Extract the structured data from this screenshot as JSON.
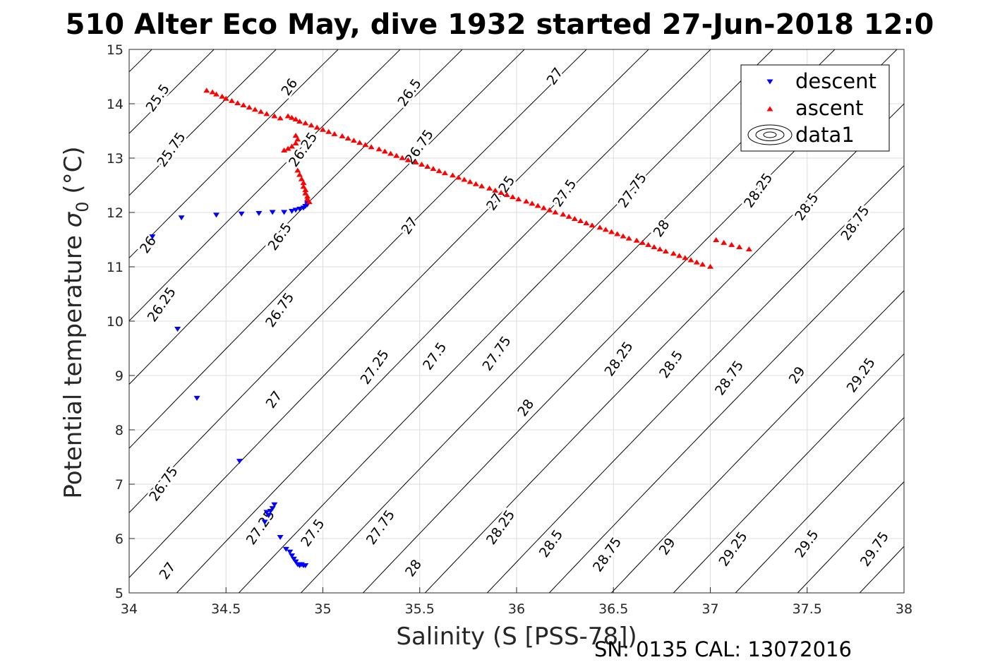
{
  "chart_data": {
    "type": "scatter",
    "title": "510 Alter Eco May, dive 1932 started 27-Jun-2018 12:0",
    "xlabel": "Salinity (S [PSS-78])",
    "ylabel_main": "Potential temperature ",
    "ylabel_symbol": "σ",
    "ylabel_sub": "0",
    "ylabel_unit": " (°C)",
    "footer": "SN: 0135  CAL: 13072016",
    "xlim": [
      34,
      38
    ],
    "ylim": [
      5,
      15
    ],
    "xticks": [
      "34",
      "34.5",
      "35",
      "35.5",
      "36",
      "36.5",
      "37",
      "37.5",
      "38"
    ],
    "yticks": [
      "5",
      "6",
      "7",
      "8",
      "9",
      "10",
      "11",
      "12",
      "13",
      "14",
      "15"
    ],
    "grid": true,
    "legend": {
      "position": "top-right",
      "entries": [
        {
          "label": "descent",
          "marker": "down-triangle",
          "color": "#0000ff"
        },
        {
          "label": "ascent",
          "marker": "up-triangle",
          "color": "#ff0000"
        },
        {
          "label": "data1",
          "marker": "contour",
          "color": "#000000"
        }
      ]
    },
    "density_contours": {
      "levels": [
        25.5,
        25.75,
        26,
        26.25,
        26.5,
        26.75,
        27,
        27.25,
        27.5,
        27.75,
        28,
        28.25,
        28.5,
        28.75,
        29,
        29.25,
        29.5,
        29.75
      ],
      "reference": {
        "S": 34.4,
        "T": 14.2,
        "sigma": 25.66
      },
      "dsigma_dS": 0.78,
      "dsigma_dT": -0.215,
      "line_color": "#000000",
      "labels": [
        {
          "text": "25.5",
          "S": 34.15,
          "T": 14.1
        },
        {
          "text": "26",
          "S": 34.83,
          "T": 14.3
        },
        {
          "text": "26.5",
          "S": 35.45,
          "T": 14.2
        },
        {
          "text": "27",
          "S": 36.2,
          "T": 14.5
        },
        {
          "text": "25.75",
          "S": 34.22,
          "T": 13.15
        },
        {
          "text": "26.25",
          "S": 34.9,
          "T": 13.15
        },
        {
          "text": "26.75",
          "S": 35.5,
          "T": 13.2
        },
        {
          "text": "26",
          "S": 34.1,
          "T": 11.4
        },
        {
          "text": "26.5",
          "S": 34.78,
          "T": 11.55
        },
        {
          "text": "27",
          "S": 35.45,
          "T": 11.75
        },
        {
          "text": "27.25",
          "S": 35.92,
          "T": 12.35
        },
        {
          "text": "27.5",
          "S": 36.25,
          "T": 12.35
        },
        {
          "text": "27.75",
          "S": 36.6,
          "T": 12.4
        },
        {
          "text": "28",
          "S": 36.75,
          "T": 11.7
        },
        {
          "text": "28.25",
          "S": 37.25,
          "T": 12.4
        },
        {
          "text": "28.5",
          "S": 37.5,
          "T": 12.1
        },
        {
          "text": "28.75",
          "S": 37.75,
          "T": 11.8
        },
        {
          "text": "26.25",
          "S": 34.17,
          "T": 10.3
        },
        {
          "text": "26.75",
          "S": 34.78,
          "T": 10.2
        },
        {
          "text": "27.25",
          "S": 35.27,
          "T": 9.15
        },
        {
          "text": "27.5",
          "S": 35.58,
          "T": 9.35
        },
        {
          "text": "27.75",
          "S": 35.9,
          "T": 9.4
        },
        {
          "text": "28.25",
          "S": 36.53,
          "T": 9.3
        },
        {
          "text": "28.5",
          "S": 36.8,
          "T": 9.2
        },
        {
          "text": "28.75",
          "S": 37.1,
          "T": 8.95
        },
        {
          "text": "29",
          "S": 37.45,
          "T": 9.0
        },
        {
          "text": "29.25",
          "S": 37.78,
          "T": 9.0
        },
        {
          "text": "27",
          "S": 34.75,
          "T": 8.55
        },
        {
          "text": "28",
          "S": 36.05,
          "T": 8.4
        },
        {
          "text": "26.75",
          "S": 34.18,
          "T": 7.0
        },
        {
          "text": "27.25",
          "S": 34.68,
          "T": 6.2
        },
        {
          "text": "27.5",
          "S": 34.95,
          "T": 6.1
        },
        {
          "text": "27.75",
          "S": 35.3,
          "T": 6.2
        },
        {
          "text": "28.25",
          "S": 35.92,
          "T": 6.2
        },
        {
          "text": "28.5",
          "S": 36.18,
          "T": 5.9
        },
        {
          "text": "28.75",
          "S": 36.47,
          "T": 5.7
        },
        {
          "text": "29",
          "S": 36.78,
          "T": 5.85
        },
        {
          "text": "29.25",
          "S": 37.12,
          "T": 5.8
        },
        {
          "text": "29.5",
          "S": 37.5,
          "T": 5.9
        },
        {
          "text": "29.75",
          "S": 37.85,
          "T": 5.8
        },
        {
          "text": "27",
          "S": 34.2,
          "T": 5.4
        },
        {
          "text": "28",
          "S": 35.47,
          "T": 5.45
        }
      ]
    },
    "series": [
      {
        "name": "descent",
        "color": "#0000ff",
        "marker": "down-triangle",
        "points": [
          [
            34.12,
            11.55
          ],
          [
            34.27,
            11.9
          ],
          [
            34.45,
            11.95
          ],
          [
            34.58,
            11.97
          ],
          [
            34.67,
            11.98
          ],
          [
            34.74,
            12.0
          ],
          [
            34.8,
            12.0
          ],
          [
            34.84,
            12.02
          ],
          [
            34.86,
            12.04
          ],
          [
            34.88,
            12.06
          ],
          [
            34.9,
            12.08
          ],
          [
            34.91,
            12.11
          ],
          [
            34.92,
            12.14
          ],
          [
            34.92,
            12.17
          ],
          [
            34.25,
            9.85
          ],
          [
            34.35,
            8.58
          ],
          [
            34.57,
            7.42
          ],
          [
            34.75,
            6.62
          ],
          [
            34.74,
            6.55
          ],
          [
            34.73,
            6.5
          ],
          [
            34.71,
            6.48
          ],
          [
            34.72,
            6.42
          ],
          [
            34.7,
            6.3
          ],
          [
            34.78,
            6.02
          ],
          [
            34.81,
            5.8
          ],
          [
            34.83,
            5.75
          ],
          [
            34.84,
            5.68
          ],
          [
            34.85,
            5.62
          ],
          [
            34.86,
            5.57
          ],
          [
            34.87,
            5.52
          ],
          [
            34.88,
            5.5
          ],
          [
            34.9,
            5.5
          ],
          [
            34.91,
            5.5
          ],
          [
            34.89,
            5.52
          ]
        ]
      },
      {
        "name": "ascent",
        "color": "#ff0000",
        "marker": "up-triangle",
        "points": [
          [
            34.4,
            14.25
          ],
          [
            34.43,
            14.22
          ],
          [
            34.45,
            14.18
          ],
          [
            34.48,
            14.14
          ],
          [
            34.5,
            14.1
          ],
          [
            34.53,
            14.06
          ],
          [
            34.56,
            14.02
          ],
          [
            34.59,
            13.98
          ],
          [
            34.62,
            13.94
          ],
          [
            34.65,
            13.9
          ],
          [
            34.68,
            13.86
          ],
          [
            34.71,
            13.82
          ],
          [
            34.75,
            13.78
          ],
          [
            34.78,
            13.74
          ],
          [
            34.82,
            13.78
          ],
          [
            34.84,
            13.75
          ],
          [
            34.86,
            13.72
          ],
          [
            34.88,
            13.68
          ],
          [
            34.91,
            13.65
          ],
          [
            34.94,
            13.61
          ],
          [
            34.97,
            13.57
          ],
          [
            35.0,
            13.53
          ],
          [
            35.03,
            13.49
          ],
          [
            35.06,
            13.45
          ],
          [
            35.1,
            13.41
          ],
          [
            35.13,
            13.37
          ],
          [
            35.16,
            13.33
          ],
          [
            35.19,
            13.29
          ],
          [
            35.22,
            13.25
          ],
          [
            35.25,
            13.21
          ],
          [
            35.29,
            13.17
          ],
          [
            35.32,
            13.13
          ],
          [
            35.35,
            13.09
          ],
          [
            35.38,
            13.05
          ],
          [
            35.41,
            13.01
          ],
          [
            35.44,
            12.97
          ],
          [
            35.48,
            12.93
          ],
          [
            35.51,
            12.89
          ],
          [
            35.54,
            12.85
          ],
          [
            35.57,
            12.81
          ],
          [
            35.6,
            12.77
          ],
          [
            35.63,
            12.73
          ],
          [
            35.67,
            12.69
          ],
          [
            35.7,
            12.65
          ],
          [
            35.73,
            12.61
          ],
          [
            35.76,
            12.57
          ],
          [
            35.79,
            12.53
          ],
          [
            35.82,
            12.49
          ],
          [
            35.86,
            12.45
          ],
          [
            35.89,
            12.41
          ],
          [
            35.92,
            12.37
          ],
          [
            35.95,
            12.33
          ],
          [
            35.98,
            12.29
          ],
          [
            36.01,
            12.25
          ],
          [
            36.05,
            12.21
          ],
          [
            36.08,
            12.17
          ],
          [
            36.11,
            12.13
          ],
          [
            36.14,
            12.09
          ],
          [
            36.17,
            12.05
          ],
          [
            36.2,
            12.01
          ],
          [
            36.24,
            11.97
          ],
          [
            36.27,
            11.93
          ],
          [
            36.3,
            11.89
          ],
          [
            36.33,
            11.85
          ],
          [
            36.36,
            11.81
          ],
          [
            36.39,
            11.77
          ],
          [
            36.43,
            11.73
          ],
          [
            36.46,
            11.69
          ],
          [
            36.49,
            11.65
          ],
          [
            36.52,
            11.61
          ],
          [
            36.55,
            11.57
          ],
          [
            36.58,
            11.53
          ],
          [
            36.62,
            11.49
          ],
          [
            36.65,
            11.45
          ],
          [
            36.68,
            11.41
          ],
          [
            36.71,
            11.37
          ],
          [
            36.74,
            11.33
          ],
          [
            36.77,
            11.29
          ],
          [
            36.81,
            11.25
          ],
          [
            36.84,
            11.21
          ],
          [
            36.87,
            11.17
          ],
          [
            36.9,
            11.13
          ],
          [
            36.93,
            11.09
          ],
          [
            36.96,
            11.05
          ],
          [
            37.0,
            11.01
          ],
          [
            37.03,
            11.5
          ],
          [
            37.07,
            11.45
          ],
          [
            37.11,
            11.41
          ],
          [
            37.15,
            11.37
          ],
          [
            37.2,
            11.33
          ],
          [
            34.8,
            13.15
          ],
          [
            34.82,
            13.18
          ],
          [
            34.84,
            13.22
          ],
          [
            34.86,
            13.28
          ],
          [
            34.87,
            13.35
          ],
          [
            34.86,
            13.42
          ],
          [
            34.87,
            12.78
          ],
          [
            34.88,
            12.7
          ],
          [
            34.89,
            12.62
          ],
          [
            34.9,
            12.55
          ],
          [
            34.9,
            12.48
          ],
          [
            34.91,
            12.42
          ],
          [
            34.91,
            12.36
          ],
          [
            34.92,
            12.3
          ],
          [
            34.92,
            12.25
          ],
          [
            34.93,
            12.2
          ]
        ]
      }
    ]
  }
}
